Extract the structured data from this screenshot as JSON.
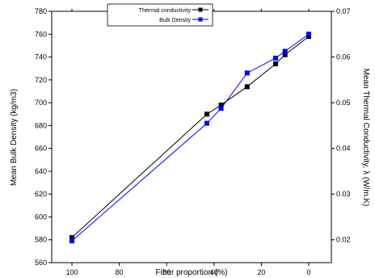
{
  "chart_data": {
    "type": "line",
    "mirrored": true,
    "xlabel": "Fiber proportion (%)",
    "xlim": [
      0,
      105
    ],
    "x_ticks": [
      0,
      20,
      40,
      60,
      80,
      100
    ],
    "x_tick_labels": [
      "0",
      "20",
      "40",
      "60",
      "80",
      "100"
    ],
    "ylabel_left": "Mean Bulk Density (kg/m3)",
    "ylim_left": [
      560,
      780
    ],
    "y_ticks_left": [
      560,
      580,
      600,
      620,
      640,
      660,
      680,
      700,
      720,
      740,
      760,
      780
    ],
    "y_tick_labels_left": [
      "560",
      "580",
      "600",
      "620",
      "640",
      "660",
      "680",
      "700",
      "720",
      "740",
      "760",
      "780"
    ],
    "ylabel_right": "Mean Thermal Conductivity, λ (W/m.K)",
    "ylim_right": [
      0.015,
      0.07
    ],
    "y_ticks_right": [
      0.02,
      0.03,
      0.04,
      0.05,
      0.06,
      0.07
    ],
    "y_tick_labels_right": [
      "0.02",
      "0.03",
      "0.04",
      "0.05",
      "0.06",
      "0.07"
    ],
    "legend_position": "top-right",
    "series": [
      {
        "name": "Thermal conductivity",
        "color": "#000000",
        "marker": "square",
        "axis": "right",
        "x": [
          0,
          10,
          14,
          26,
          37,
          43,
          100
        ],
        "y": [
          0.0645,
          0.0605,
          0.0585,
          0.0535,
          0.0495,
          0.0475,
          0.0205
        ]
      },
      {
        "name": "Bulk Density",
        "color": "#0000ff",
        "marker": "square",
        "axis": "left",
        "x": [
          0,
          10,
          14,
          26,
          37,
          43,
          100
        ],
        "y": [
          760,
          745,
          739,
          726,
          695,
          682,
          579
        ]
      }
    ]
  }
}
